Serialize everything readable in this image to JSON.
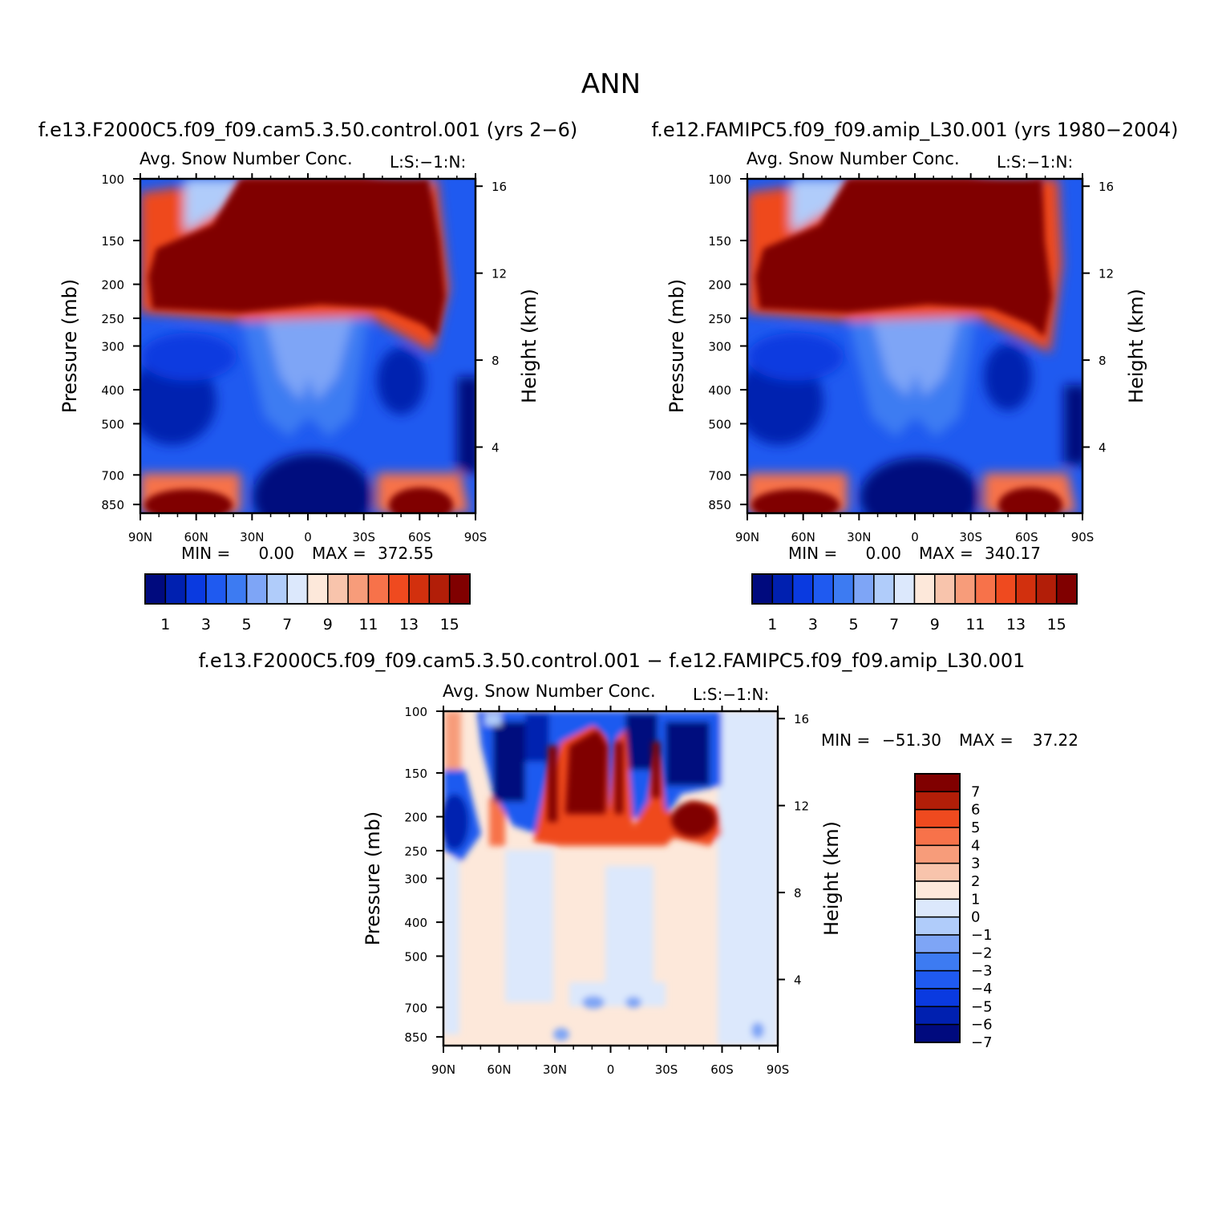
{
  "page_title": "ANN",
  "colors": {
    "palette": [
      "#000a7e",
      "#0020b0",
      "#0a3ae0",
      "#1f5af0",
      "#3d7bf2",
      "#7ea5f6",
      "#b0ccfa",
      "#dce8fc",
      "#fde8da",
      "#f8c4ac",
      "#f79c7a",
      "#f7724a",
      "#ef4a1f",
      "#d2300e",
      "#b21e08",
      "#800000"
    ],
    "diff_palette": [
      "#000a7e",
      "#0020b0",
      "#0a3ae0",
      "#1f5af0",
      "#3d7bf2",
      "#7ea5f6",
      "#b0ccfa",
      "#dce8fc",
      "#fde8da",
      "#f8c4ac",
      "#f79c7a",
      "#f7724a",
      "#ef4a1f",
      "#b21e08",
      "#800000"
    ]
  },
  "chart_data": [
    {
      "type": "heatmap",
      "panel": "control",
      "header": "f.e13.F2000C5.f09_f09.cam5.3.50.control.001 (yrs 2−6)",
      "title": "Avg. Snow Number Conc.",
      "right_label": "L:S:−1:N:",
      "ylabel": "Pressure (mb)",
      "ylabel_right": "Height (km)",
      "x_ticks": [
        "90N",
        "60N",
        "30N",
        "0",
        "30S",
        "60S",
        "90S"
      ],
      "y_ticks": [
        "100",
        "150",
        "200",
        "250",
        "300",
        "400",
        "500",
        "700",
        "850"
      ],
      "y_right_ticks": [
        "16",
        "12",
        "8",
        "4"
      ],
      "min_label": "MIN =",
      "min_value": "0.00",
      "max_label": "MAX =",
      "max_value": "372.55",
      "colorbar_labels": [
        "1",
        "3",
        "5",
        "7",
        "9",
        "11",
        "13",
        "15"
      ],
      "colorbar_levels": 16
    },
    {
      "type": "heatmap",
      "panel": "amip",
      "header": "f.e12.FAMIPC5.f09_f09.amip_L30.001 (yrs 1980−2004)",
      "title": "Avg. Snow Number Conc.",
      "right_label": "L:S:−1:N:",
      "ylabel": "Pressure (mb)",
      "ylabel_right": "Height (km)",
      "x_ticks": [
        "90N",
        "60N",
        "30N",
        "0",
        "30S",
        "60S",
        "90S"
      ],
      "y_ticks": [
        "100",
        "150",
        "200",
        "250",
        "300",
        "400",
        "500",
        "700",
        "850"
      ],
      "y_right_ticks": [
        "16",
        "12",
        "8",
        "4"
      ],
      "min_label": "MIN =",
      "min_value": "0.00",
      "max_label": "MAX =",
      "max_value": "340.17",
      "colorbar_labels": [
        "1",
        "3",
        "5",
        "7",
        "9",
        "11",
        "13",
        "15"
      ],
      "colorbar_levels": 16
    },
    {
      "type": "heatmap",
      "panel": "difference",
      "header": "f.e13.F2000C5.f09_f09.cam5.3.50.control.001 − f.e12.FAMIPC5.f09_f09.amip_L30.001",
      "title": "Avg. Snow Number Conc.",
      "right_label": "L:S:−1:N:",
      "ylabel": "Pressure (mb)",
      "ylabel_right": "Height (km)",
      "x_ticks": [
        "90N",
        "60N",
        "30N",
        "0",
        "30S",
        "60S",
        "90S"
      ],
      "y_ticks": [
        "100",
        "150",
        "200",
        "250",
        "300",
        "400",
        "500",
        "700",
        "850"
      ],
      "y_right_ticks": [
        "16",
        "12",
        "8",
        "4"
      ],
      "min_label": "MIN =",
      "min_value": "−51.30",
      "max_label": "MAX =",
      "max_value": "37.22",
      "colorbar_labels": [
        "7",
        "6",
        "5",
        "4",
        "3",
        "2",
        "1",
        "0",
        "−1",
        "−2",
        "−3",
        "−4",
        "−5",
        "−6",
        "−7"
      ],
      "colorbar_levels": 15
    }
  ]
}
